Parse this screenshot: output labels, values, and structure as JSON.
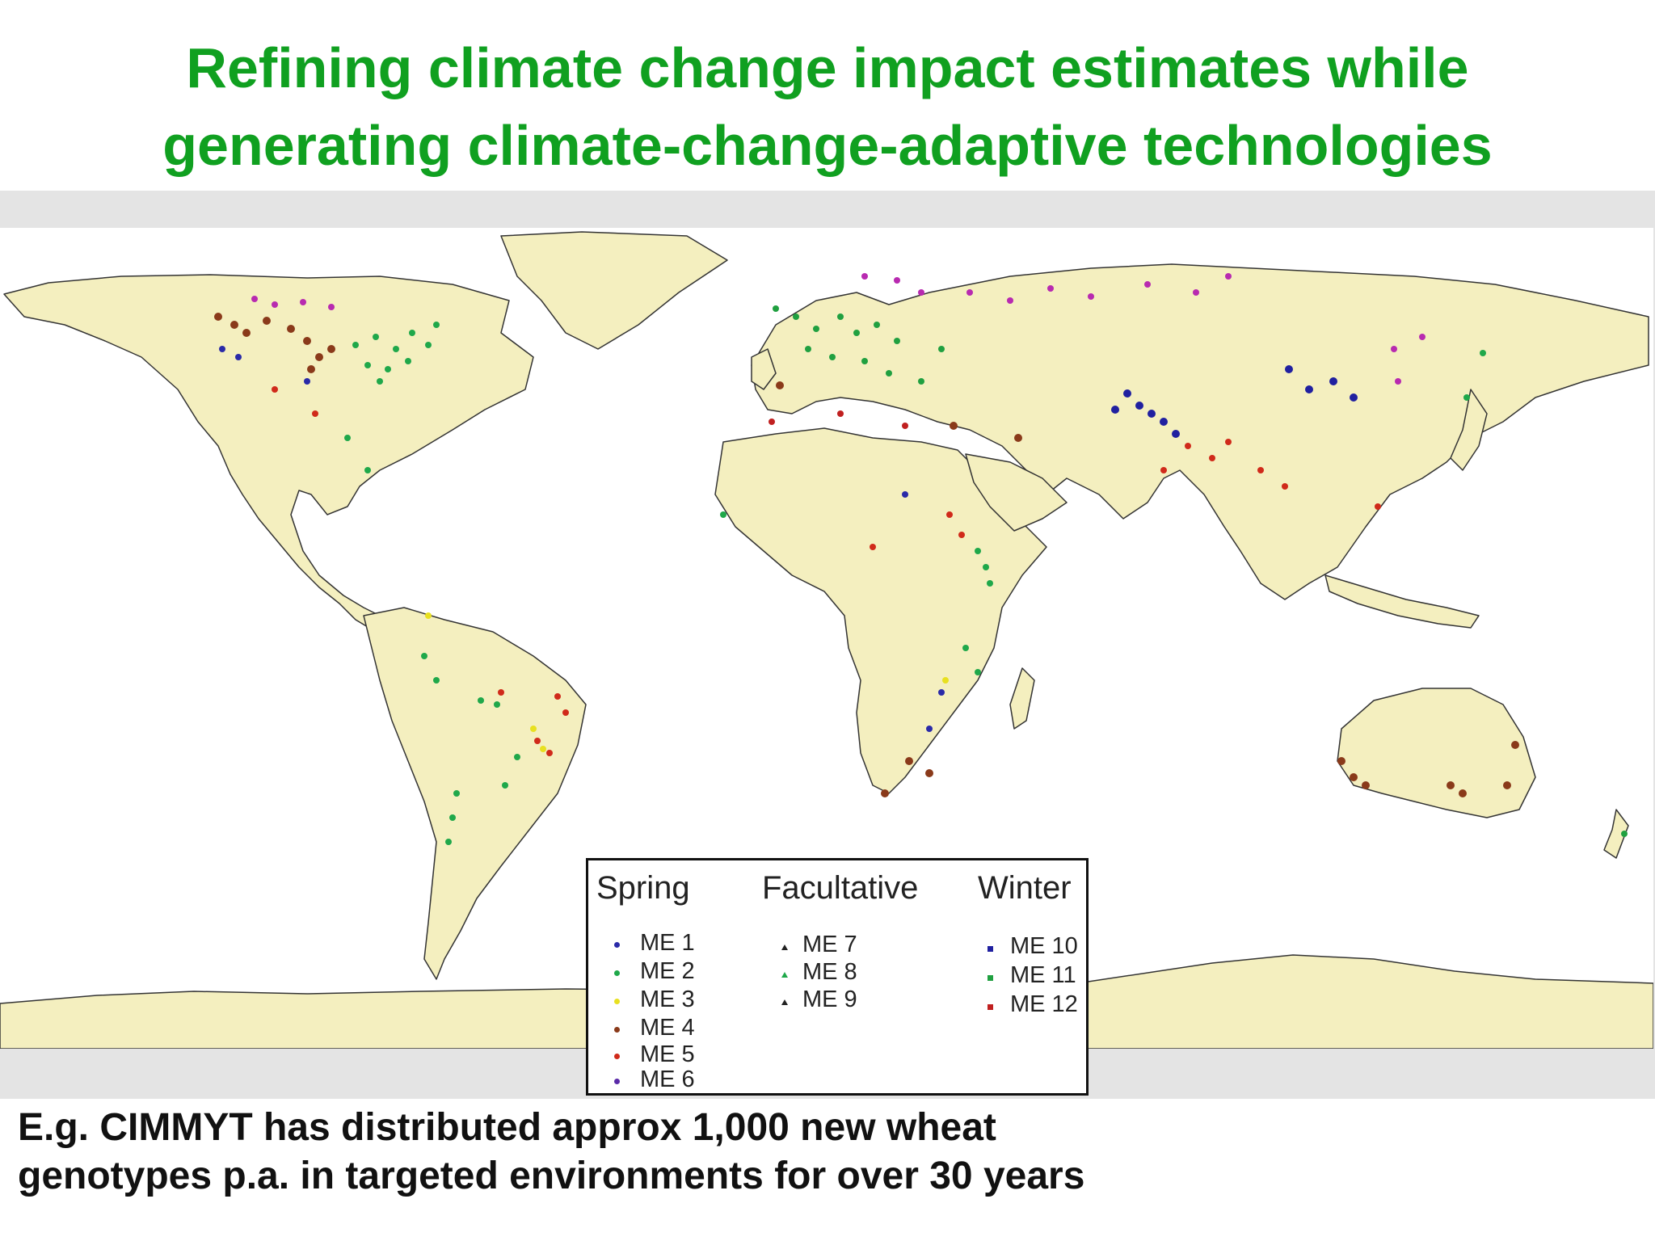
{
  "slide": {
    "title_line1": "Refining climate change impact estimates while",
    "title_line2": "generating climate-change-adaptive technologies",
    "caption_line1": "E.g. CIMMYT has distributed approx 1,000 new wheat",
    "caption_line2": "genotypes p.a.  in targeted environments for over 30 years"
  },
  "colors": {
    "title": "#10a020",
    "land": "#f4efbf",
    "me1": "#2a2aa8",
    "me2": "#1fa84a",
    "me3": "#e8e020",
    "me4": "#8a3a1a",
    "me5": "#d02a1a",
    "me6": "#b82ab0",
    "me10": "#2020a0",
    "me11": "#20a040",
    "me12": "#c02020"
  },
  "legend": {
    "groups": [
      {
        "heading": "Spring",
        "items": [
          "ME 1",
          "ME 2",
          "ME 3",
          "ME 4",
          "ME 5",
          "ME 6"
        ]
      },
      {
        "heading": "Facultative",
        "items": [
          "ME 7",
          "ME 8",
          "ME 9"
        ]
      },
      {
        "heading": "Winter",
        "items": [
          "ME 10",
          "ME 11",
          "ME 12"
        ]
      }
    ]
  }
}
